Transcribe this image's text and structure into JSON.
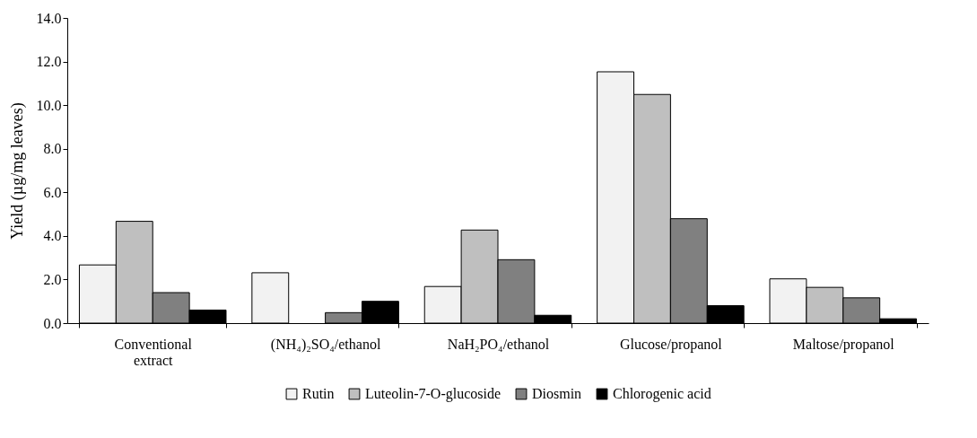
{
  "chart_data": {
    "type": "bar",
    "ylabel": "Yield (µg/mg leaves)",
    "categories": [
      "Conventional extract",
      "(NH₄)₂SO₄/ethanol",
      "NaH₂PO₄/ethanol",
      "Glucose/propanol",
      "Maltose/propanol"
    ],
    "series": [
      {
        "name": "Rutin",
        "color": "#f2f2f2",
        "values": [
          2.67,
          2.31,
          1.68,
          11.53,
          2.03
        ]
      },
      {
        "name": "Luteolin-7-O-glucoside",
        "color": "#bfbfbf",
        "values": [
          4.67,
          null,
          4.27,
          10.49,
          1.64
        ]
      },
      {
        "name": "Diosmin",
        "color": "#808080",
        "values": [
          1.4,
          0.48,
          2.91,
          4.79,
          1.16
        ]
      },
      {
        "name": "Chlorogenic acid",
        "color": "#000000",
        "values": [
          0.6,
          1.0,
          0.36,
          0.8,
          0.2
        ]
      }
    ],
    "ylim": [
      0,
      14
    ],
    "yticks": [
      {
        "value": 0,
        "label": "0.0"
      },
      {
        "value": 2,
        "label": "2.0"
      },
      {
        "value": 4,
        "label": "4.0"
      },
      {
        "value": 6,
        "label": "6.0"
      },
      {
        "value": 8,
        "label": "8.0"
      },
      {
        "value": 10,
        "label": "10.0"
      },
      {
        "value": 12,
        "label": "12.0"
      },
      {
        "value": 14,
        "label": "14.0"
      }
    ],
    "grid": false,
    "legend": "bottom"
  }
}
